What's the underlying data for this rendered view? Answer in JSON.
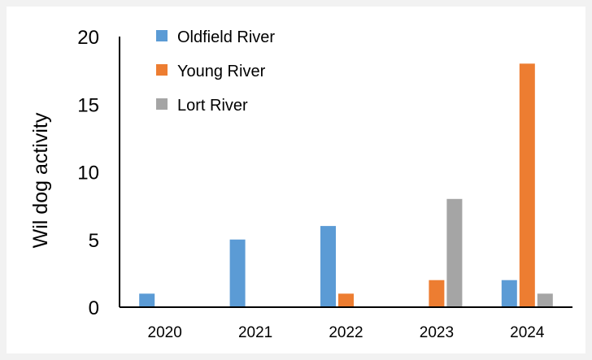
{
  "chart_data": {
    "type": "bar",
    "title": "",
    "xlabel": "",
    "ylabel": "Wil dog activity",
    "categories": [
      "2020",
      "2021",
      "2022",
      "2023",
      "2024"
    ],
    "ylim": [
      0,
      20
    ],
    "yticks": [
      0,
      5,
      10,
      15,
      20
    ],
    "grid": false,
    "legend_position": "top-left",
    "series": [
      {
        "name": "Oldfield River",
        "color": "#5b9bd5",
        "values": [
          1,
          5,
          6,
          0,
          2
        ]
      },
      {
        "name": "Young River",
        "color": "#ed7d31",
        "values": [
          0,
          0,
          1,
          2,
          18
        ]
      },
      {
        "name": "Lort River",
        "color": "#a5a5a5",
        "values": [
          0,
          0,
          0,
          8,
          1
        ]
      }
    ]
  }
}
